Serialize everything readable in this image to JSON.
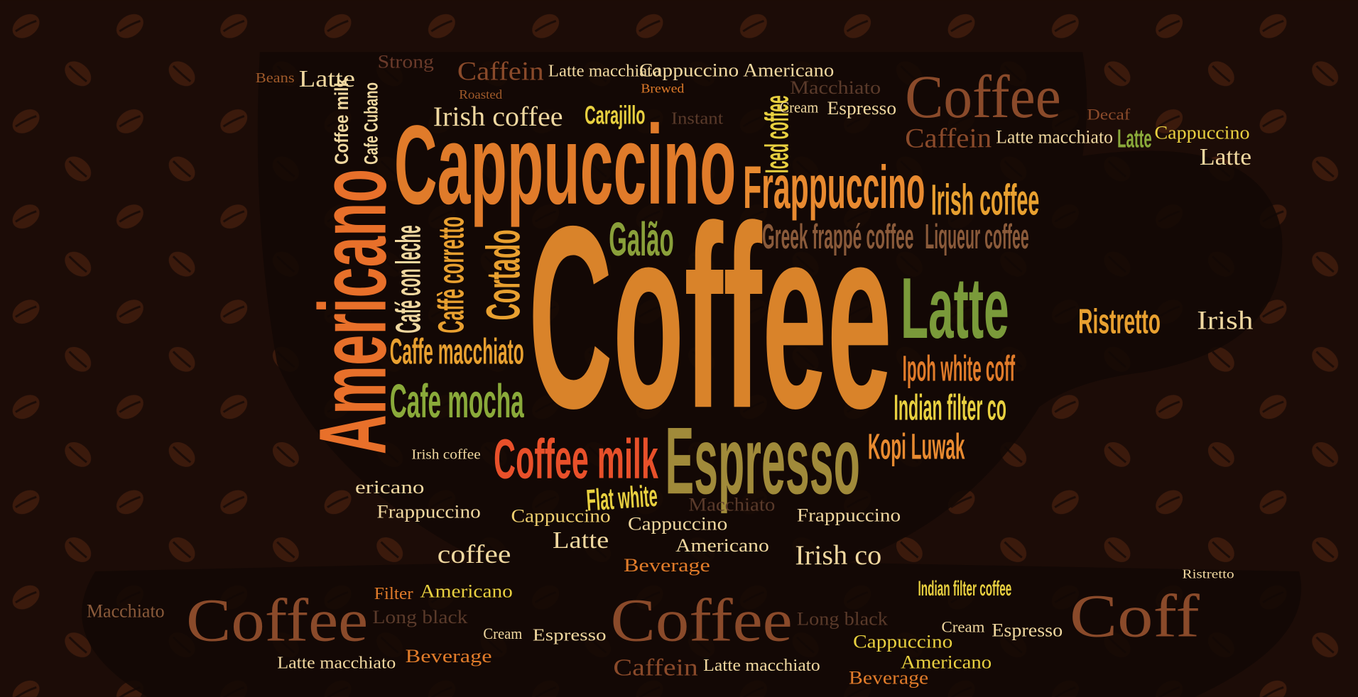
{
  "words": [
    "Coffee",
    "Cappuccino",
    "Americano",
    "Espresso",
    "Frappuccino",
    "Latte",
    "Irish coffee",
    "Cafe mocha",
    "Caffe macchiato",
    "Coffee milk",
    "Galão",
    "Greek frappé coffee",
    "Liqueur coffee",
    "Irish coffee",
    "Ipoh white coff",
    "Indian filter co",
    "Kopi Luwak",
    "Flat white",
    "Cortado",
    "Caffè corretto",
    "Café con leche",
    "Iced coffee",
    "Carajillo",
    "Latte macchiato",
    "Cappuccino",
    "Americano",
    "Caffein",
    "Latte",
    "Coffee",
    "Caffein",
    "Latte macchiato",
    "Latte",
    "Cappuccino",
    "Latte",
    "Espresso",
    "Ristretto",
    "Irish",
    "Coffee",
    "Coffee",
    "Coff",
    "Cappuccino",
    "Latte",
    "Cappuccino",
    "Americano",
    "Beverage",
    "Frappuccino",
    "Irish co",
    "coffee",
    "Frappuccino",
    "ericano",
    "Irish coffee",
    "Americano",
    "Latte macchiato",
    "Beverage",
    "Espresso",
    "Caffein",
    "Latte macchiato",
    "Cappuccino",
    "Americano",
    "Beverage",
    "Indian filter coffee",
    "Espresso",
    "Long black",
    "Long black",
    "Macchiato",
    "Strong",
    "Macchiato",
    "Instant",
    "Cafe Cubano",
    "Coffee milk",
    "Cream",
    "Filter",
    "Cream",
    "Cream",
    "Roasted",
    "Brewed",
    "Beans",
    "Decaf",
    "Ristretto",
    "Macchiato"
  ]
}
